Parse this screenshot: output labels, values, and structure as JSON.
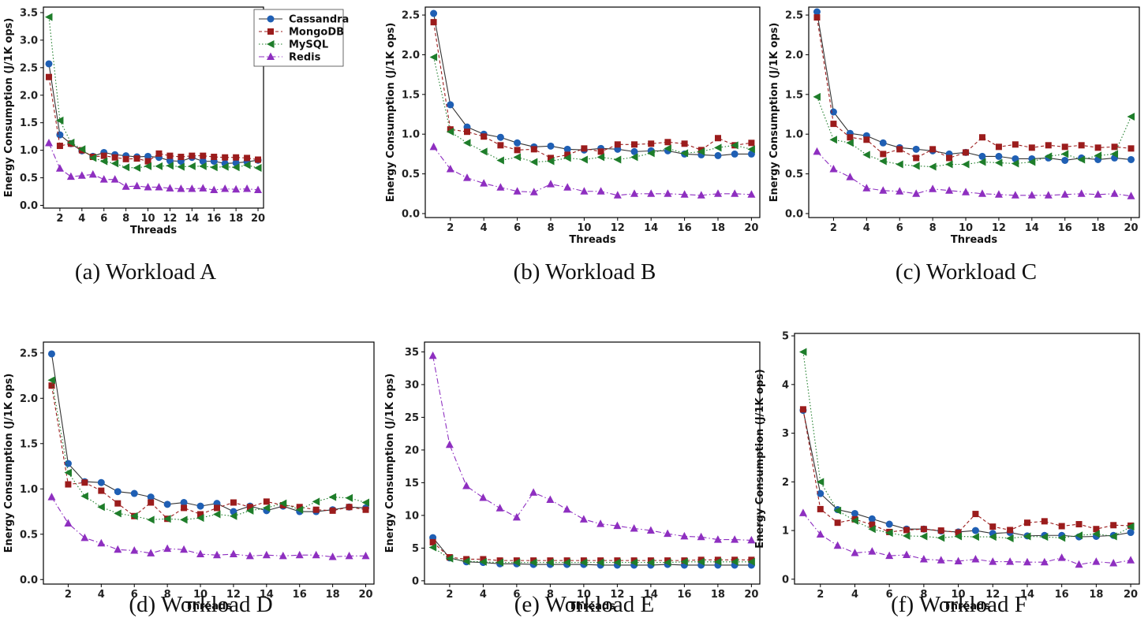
{
  "figure": {
    "legend": [
      "Cassandra",
      "MongoDB",
      "MySQL",
      "Redis"
    ]
  },
  "series_styles": [
    {
      "name": "Cassandra",
      "color": "#1f5fb4",
      "marker": "circle",
      "dash": ""
    },
    {
      "name": "MongoDB",
      "color": "#9b1c1c",
      "marker": "square",
      "dash": "4,3"
    },
    {
      "name": "MySQL",
      "color": "#1e7d2a",
      "marker": "triangle-left",
      "dash": "1.5,2.5"
    },
    {
      "name": "Redis",
      "color": "#8e2fc0",
      "marker": "triangle-up",
      "dash": "7,3,1.5,3"
    }
  ],
  "chart_data": [
    {
      "type": "line",
      "title": "",
      "caption": "(a) Workload A",
      "xlabel": "Threads",
      "ylabel": "Energy Consumption (J/1K ops)",
      "x": [
        1,
        2,
        3,
        4,
        5,
        6,
        7,
        8,
        9,
        10,
        11,
        12,
        13,
        14,
        15,
        16,
        17,
        18,
        19,
        20
      ],
      "xticks": [
        2,
        4,
        6,
        8,
        10,
        12,
        14,
        16,
        18,
        20
      ],
      "xlim": [
        0.5,
        20.5
      ],
      "ylim": [
        -0.05,
        3.6
      ],
      "yticks": [
        0.0,
        0.5,
        1.0,
        1.5,
        2.0,
        2.5,
        3.0,
        3.5
      ],
      "ytick_labels": [
        "0.0",
        "0.5",
        "1.0",
        "1.5",
        "2.0",
        "2.5",
        "3.0",
        "3.5"
      ],
      "legend": true,
      "series": [
        {
          "name": "Cassandra",
          "values": [
            2.57,
            1.28,
            1.12,
            0.99,
            0.89,
            0.96,
            0.92,
            0.9,
            0.88,
            0.89,
            0.87,
            0.81,
            0.8,
            0.87,
            0.8,
            0.8,
            0.76,
            0.77,
            0.79,
            0.82
          ]
        },
        {
          "name": "MongoDB",
          "values": [
            2.33,
            1.08,
            1.12,
            1.0,
            0.88,
            0.9,
            0.87,
            0.84,
            0.85,
            0.8,
            0.94,
            0.9,
            0.88,
            0.9,
            0.9,
            0.88,
            0.87,
            0.87,
            0.86,
            0.83
          ]
        },
        {
          "name": "MySQL",
          "values": [
            3.42,
            1.54,
            1.14,
            1.02,
            0.86,
            0.8,
            0.76,
            0.69,
            0.68,
            0.71,
            0.71,
            0.72,
            0.7,
            0.71,
            0.71,
            0.69,
            0.7,
            0.69,
            0.73,
            0.68
          ]
        },
        {
          "name": "Redis",
          "values": [
            1.13,
            0.67,
            0.52,
            0.54,
            0.56,
            0.47,
            0.47,
            0.34,
            0.35,
            0.33,
            0.33,
            0.31,
            0.3,
            0.3,
            0.31,
            0.28,
            0.3,
            0.29,
            0.3,
            0.28
          ]
        }
      ]
    },
    {
      "type": "line",
      "title": "",
      "caption": "(b) Workload B",
      "xlabel": "Threads",
      "ylabel": "Energy Consumption (J/1K ops)",
      "x": [
        1,
        2,
        3,
        4,
        5,
        6,
        7,
        8,
        9,
        10,
        11,
        12,
        13,
        14,
        15,
        16,
        17,
        18,
        19,
        20
      ],
      "xticks": [
        2,
        4,
        6,
        8,
        10,
        12,
        14,
        16,
        18,
        20
      ],
      "xlim": [
        0.5,
        20.5
      ],
      "ylim": [
        -0.05,
        2.6
      ],
      "yticks": [
        0.0,
        0.5,
        1.0,
        1.5,
        2.0,
        2.5
      ],
      "ytick_labels": [
        "0.0",
        "0.5",
        "1.0",
        "1.5",
        "2.0",
        "2.5"
      ],
      "legend": false,
      "series": [
        {
          "name": "Cassandra",
          "values": [
            2.52,
            1.37,
            1.09,
            1.0,
            0.96,
            0.89,
            0.84,
            0.85,
            0.81,
            0.8,
            0.82,
            0.81,
            0.78,
            0.79,
            0.79,
            0.75,
            0.74,
            0.73,
            0.75,
            0.75
          ]
        },
        {
          "name": "MongoDB",
          "values": [
            2.41,
            1.06,
            1.03,
            0.97,
            0.86,
            0.8,
            0.81,
            0.7,
            0.74,
            0.82,
            0.78,
            0.87,
            0.87,
            0.88,
            0.9,
            0.88,
            0.8,
            0.95,
            0.86,
            0.89
          ]
        },
        {
          "name": "MySQL",
          "values": [
            1.97,
            1.03,
            0.89,
            0.78,
            0.67,
            0.71,
            0.65,
            0.66,
            0.7,
            0.68,
            0.71,
            0.68,
            0.71,
            0.76,
            0.82,
            0.76,
            0.78,
            0.83,
            0.86,
            0.81
          ]
        },
        {
          "name": "Redis",
          "values": [
            0.84,
            0.56,
            0.45,
            0.38,
            0.33,
            0.28,
            0.27,
            0.37,
            0.33,
            0.28,
            0.28,
            0.23,
            0.25,
            0.25,
            0.25,
            0.24,
            0.23,
            0.25,
            0.25,
            0.24
          ]
        }
      ]
    },
    {
      "type": "line",
      "title": "",
      "caption": "(c) Workload C",
      "xlabel": "Threads",
      "ylabel": "Energy Consumption (J/1K ops)",
      "x": [
        1,
        2,
        3,
        4,
        5,
        6,
        7,
        8,
        9,
        10,
        11,
        12,
        13,
        14,
        15,
        16,
        17,
        18,
        19,
        20
      ],
      "xticks": [
        2,
        4,
        6,
        8,
        10,
        12,
        14,
        16,
        18,
        20
      ],
      "xlim": [
        0.5,
        20.5
      ],
      "ylim": [
        -0.05,
        2.6
      ],
      "yticks": [
        0.0,
        0.5,
        1.0,
        1.5,
        2.0,
        2.5
      ],
      "ytick_labels": [
        "0.0",
        "0.5",
        "1.0",
        "1.5",
        "2.0",
        "2.5"
      ],
      "legend": false,
      "series": [
        {
          "name": "Cassandra",
          "values": [
            2.54,
            1.28,
            1.01,
            0.98,
            0.89,
            0.83,
            0.81,
            0.79,
            0.75,
            0.77,
            0.72,
            0.72,
            0.69,
            0.69,
            0.7,
            0.67,
            0.7,
            0.68,
            0.7,
            0.68
          ]
        },
        {
          "name": "MongoDB",
          "values": [
            2.47,
            1.13,
            0.96,
            0.93,
            0.75,
            0.81,
            0.7,
            0.81,
            0.7,
            0.77,
            0.96,
            0.84,
            0.87,
            0.83,
            0.86,
            0.84,
            0.86,
            0.83,
            0.84,
            0.82
          ]
        },
        {
          "name": "MySQL",
          "values": [
            1.47,
            0.93,
            0.89,
            0.74,
            0.66,
            0.62,
            0.6,
            0.59,
            0.62,
            0.62,
            0.65,
            0.64,
            0.63,
            0.65,
            0.72,
            0.75,
            0.68,
            0.73,
            0.75,
            1.22
          ]
        },
        {
          "name": "Redis",
          "values": [
            0.78,
            0.56,
            0.46,
            0.32,
            0.29,
            0.28,
            0.25,
            0.31,
            0.29,
            0.27,
            0.25,
            0.24,
            0.23,
            0.23,
            0.23,
            0.24,
            0.25,
            0.24,
            0.25,
            0.22
          ]
        }
      ]
    },
    {
      "type": "line",
      "title": "",
      "caption": "(d) Workload D",
      "xlabel": "Threads",
      "ylabel": "Energy Consumption (J/1K ops)",
      "x": [
        1,
        2,
        3,
        4,
        5,
        6,
        7,
        8,
        9,
        10,
        11,
        12,
        13,
        14,
        15,
        16,
        17,
        18,
        19,
        20
      ],
      "xticks": [
        2,
        4,
        6,
        8,
        10,
        12,
        14,
        16,
        18,
        20
      ],
      "xlim": [
        0.5,
        20.5
      ],
      "ylim": [
        -0.05,
        2.62
      ],
      "yticks": [
        0.0,
        0.5,
        1.0,
        1.5,
        2.0,
        2.5
      ],
      "ytick_labels": [
        "0.0",
        "0.5",
        "1.0",
        "1.5",
        "2.0",
        "2.5"
      ],
      "legend": false,
      "series": [
        {
          "name": "Cassandra",
          "values": [
            2.49,
            1.28,
            1.08,
            1.07,
            0.97,
            0.95,
            0.91,
            0.83,
            0.85,
            0.81,
            0.84,
            0.75,
            0.81,
            0.76,
            0.81,
            0.75,
            0.75,
            0.77,
            0.8,
            0.79
          ]
        },
        {
          "name": "MongoDB",
          "values": [
            2.14,
            1.05,
            1.07,
            0.98,
            0.84,
            0.7,
            0.85,
            0.67,
            0.79,
            0.72,
            0.79,
            0.85,
            0.8,
            0.86,
            0.82,
            0.8,
            0.77,
            0.76,
            0.8,
            0.77
          ]
        },
        {
          "name": "MySQL",
          "values": [
            2.2,
            1.18,
            0.92,
            0.8,
            0.73,
            0.7,
            0.66,
            0.67,
            0.66,
            0.68,
            0.72,
            0.7,
            0.76,
            0.79,
            0.84,
            0.77,
            0.86,
            0.91,
            0.9,
            0.85
          ]
        },
        {
          "name": "Redis",
          "values": [
            0.91,
            0.62,
            0.46,
            0.4,
            0.33,
            0.32,
            0.29,
            0.34,
            0.33,
            0.28,
            0.27,
            0.28,
            0.26,
            0.27,
            0.26,
            0.27,
            0.27,
            0.25,
            0.26,
            0.26
          ]
        }
      ]
    },
    {
      "type": "line",
      "title": "",
      "caption": "(e) Workload E",
      "xlabel": "Threads",
      "ylabel": "Energy Consumption (J/1K ops)",
      "x": [
        1,
        2,
        3,
        4,
        5,
        6,
        7,
        8,
        9,
        10,
        11,
        12,
        13,
        14,
        15,
        16,
        17,
        18,
        19,
        20
      ],
      "xticks": [
        2,
        4,
        6,
        8,
        10,
        12,
        14,
        16,
        18,
        20
      ],
      "xlim": [
        0.5,
        20.5
      ],
      "ylim": [
        -0.5,
        36.5
      ],
      "yticks": [
        0,
        5,
        10,
        15,
        20,
        25,
        30,
        35
      ],
      "ytick_labels": [
        "0",
        "5",
        "10",
        "15",
        "20",
        "25",
        "30",
        "35"
      ],
      "legend": false,
      "series": [
        {
          "name": "Cassandra",
          "values": [
            6.6,
            3.5,
            2.9,
            2.8,
            2.6,
            2.6,
            2.5,
            2.5,
            2.5,
            2.5,
            2.4,
            2.4,
            2.4,
            2.4,
            2.5,
            2.4,
            2.4,
            2.4,
            2.4,
            2.4
          ]
        },
        {
          "name": "MongoDB",
          "values": [
            5.9,
            3.6,
            3.3,
            3.3,
            3.1,
            3.1,
            3.1,
            3.1,
            3.1,
            3.1,
            3.1,
            3.1,
            3.1,
            3.1,
            3.1,
            3.1,
            3.2,
            3.2,
            3.2,
            3.2
          ]
        },
        {
          "name": "MySQL",
          "values": [
            5.1,
            3.4,
            3.0,
            2.9,
            2.8,
            2.8,
            2.8,
            2.8,
            2.8,
            2.8,
            2.8,
            2.8,
            2.8,
            2.8,
            2.8,
            2.9,
            2.9,
            2.9,
            2.9,
            2.9
          ]
        },
        {
          "name": "Redis",
          "values": [
            34.4,
            20.8,
            14.5,
            12.7,
            11.1,
            9.7,
            13.5,
            12.4,
            10.9,
            9.4,
            8.7,
            8.4,
            8.0,
            7.7,
            7.2,
            6.8,
            6.7,
            6.3,
            6.3,
            6.2
          ]
        }
      ]
    },
    {
      "type": "line",
      "title": "",
      "caption": "(f) Workload F",
      "xlabel": "Threads",
      "ylabel": "Energy Consumption (J/1K ops)",
      "x": [
        1,
        2,
        3,
        4,
        5,
        6,
        7,
        8,
        9,
        10,
        11,
        12,
        13,
        14,
        15,
        16,
        17,
        18,
        19,
        20
      ],
      "xticks": [
        2,
        4,
        6,
        8,
        10,
        12,
        14,
        16,
        18,
        20
      ],
      "xlim": [
        0.5,
        20.5
      ],
      "ylim": [
        -0.1,
        5.05
      ],
      "yticks": [
        0,
        1,
        2,
        3,
        4,
        5
      ],
      "ytick_labels": [
        "0",
        "1",
        "2",
        "3",
        "4",
        "5"
      ],
      "legend": false,
      "series": [
        {
          "name": "Cassandra",
          "values": [
            3.47,
            1.76,
            1.43,
            1.35,
            1.24,
            1.13,
            1.03,
            1.03,
            0.99,
            0.97,
            1.0,
            0.94,
            0.96,
            0.89,
            0.9,
            0.9,
            0.87,
            0.88,
            0.9,
            0.96
          ]
        },
        {
          "name": "MongoDB",
          "values": [
            3.49,
            1.44,
            1.16,
            1.23,
            1.12,
            0.97,
            1.01,
            1.03,
            1.0,
            0.96,
            1.34,
            1.08,
            1.01,
            1.16,
            1.19,
            1.09,
            1.13,
            1.03,
            1.11,
            1.1
          ]
        },
        {
          "name": "MySQL",
          "values": [
            4.67,
            2.0,
            1.41,
            1.2,
            1.03,
            0.95,
            0.89,
            0.88,
            0.85,
            0.88,
            0.87,
            0.87,
            0.84,
            0.88,
            0.87,
            0.85,
            0.9,
            0.93,
            0.88,
            1.08
          ]
        },
        {
          "name": "Redis",
          "values": [
            1.36,
            0.92,
            0.69,
            0.54,
            0.57,
            0.48,
            0.5,
            0.41,
            0.39,
            0.37,
            0.41,
            0.36,
            0.36,
            0.35,
            0.35,
            0.44,
            0.3,
            0.36,
            0.33,
            0.39
          ]
        }
      ]
    }
  ]
}
